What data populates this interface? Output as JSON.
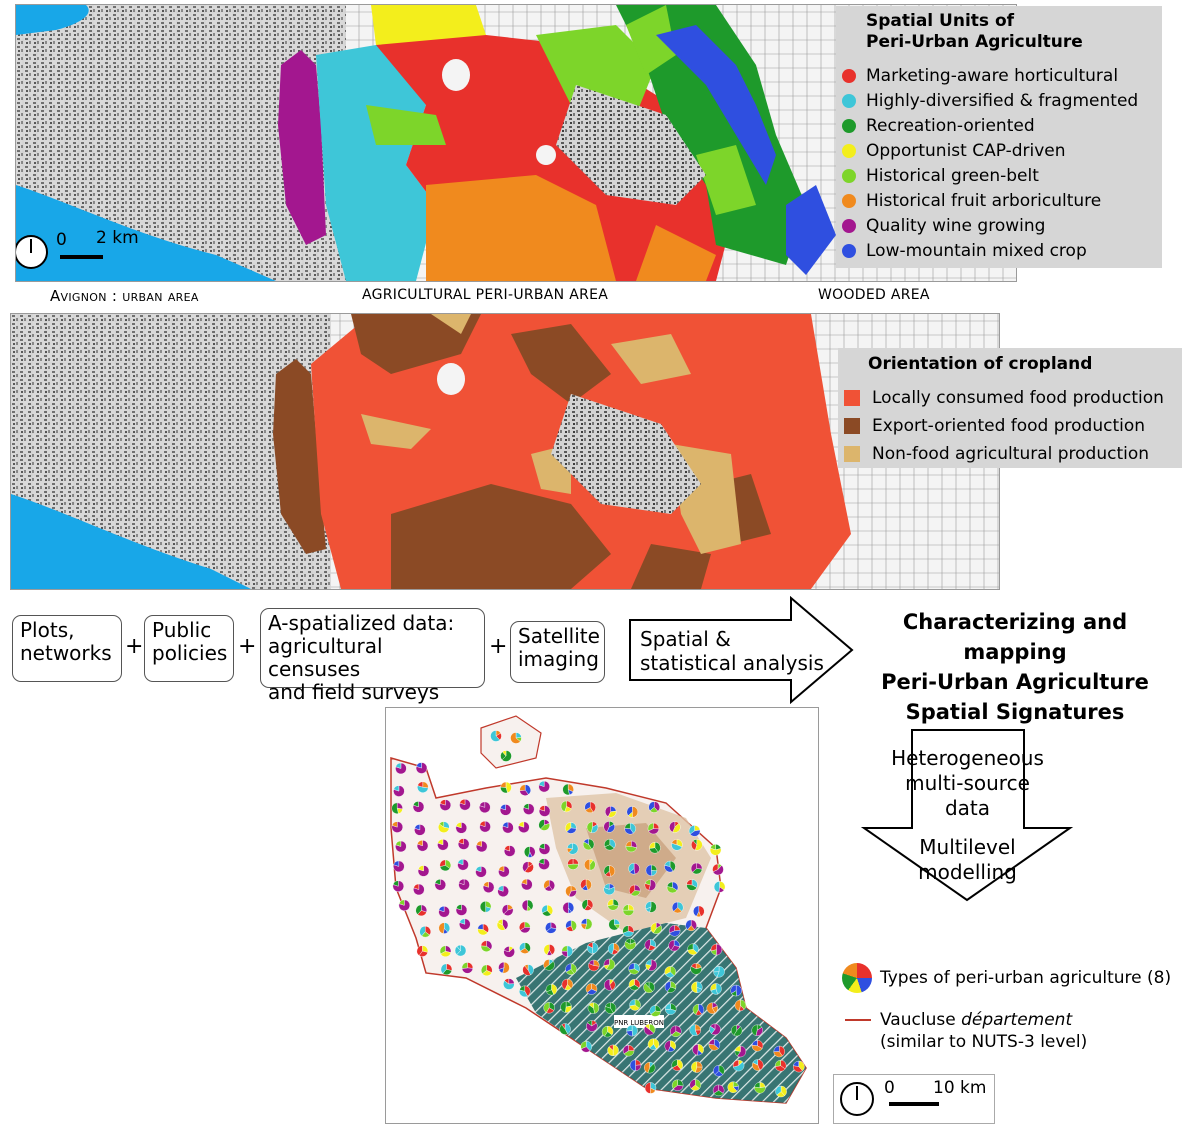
{
  "panel_top": {
    "legend": {
      "title_line1": "Spatial Units of",
      "title_line2": "Peri-Urban Agriculture",
      "items": [
        {
          "label": "Marketing-aware horticultural",
          "color": "#e8312c"
        },
        {
          "label": "Highly-diversified & fragmented",
          "color": "#3ec6d8"
        },
        {
          "label": "Recreation-oriented",
          "color": "#1e9a2b"
        },
        {
          "label": "Opportunist CAP-driven",
          "color": "#f3ee1c"
        },
        {
          "label": "Historical green-belt",
          "color": "#7dd52a"
        },
        {
          "label": "Historical fruit arboriculture",
          "color": "#f08a1e"
        },
        {
          "label": "Quality wine growing",
          "color": "#a3178f"
        },
        {
          "label": "Low-mountain mixed crop",
          "color": "#2f4fe0"
        }
      ]
    },
    "scale": {
      "zero": "0",
      "km": "2 km"
    }
  },
  "bands": {
    "urban": "Avignon : urban area",
    "periurban": "agricultural peri-urban area",
    "wooded": "wooded area"
  },
  "panel_mid": {
    "legend": {
      "title": "Orientation of cropland",
      "items": [
        {
          "label": "Locally consumed food production",
          "color": "#f05236"
        },
        {
          "label": "Export-oriented food production",
          "color": "#8b4a25"
        },
        {
          "label": "Non-food agricultural production",
          "color": "#dcb56c"
        }
      ]
    }
  },
  "flow": {
    "box1": [
      "Plots,",
      "networks"
    ],
    "box2": [
      "Public",
      "policies"
    ],
    "box3": [
      "A-spatialized data:",
      "agricultural censuses",
      "and field surveys"
    ],
    "box4": [
      "Satellite",
      "imaging"
    ],
    "plus": "+",
    "arrow": [
      "Spatial &",
      "statistical analysis"
    ],
    "result": [
      "Characterizing and mapping",
      "Peri-Urban Agriculture",
      "Spatial Signatures"
    ]
  },
  "down_arrow": {
    "line1": "Heterogeneous",
    "line2": "multi-source data",
    "line3": "Multilevel",
    "line4": "modelling"
  },
  "bottom_map": {
    "park_label": "PNR LUBERON",
    "legend": {
      "pie_label": "Types of peri-urban agriculture (8)",
      "line_label_pre": "Vaucluse ",
      "line_label_em": "département",
      "line_label_2": "(similar to NUTS-3 level)",
      "line_color": "#c0392b"
    },
    "scale": {
      "zero": "0",
      "km": "10 km"
    }
  }
}
